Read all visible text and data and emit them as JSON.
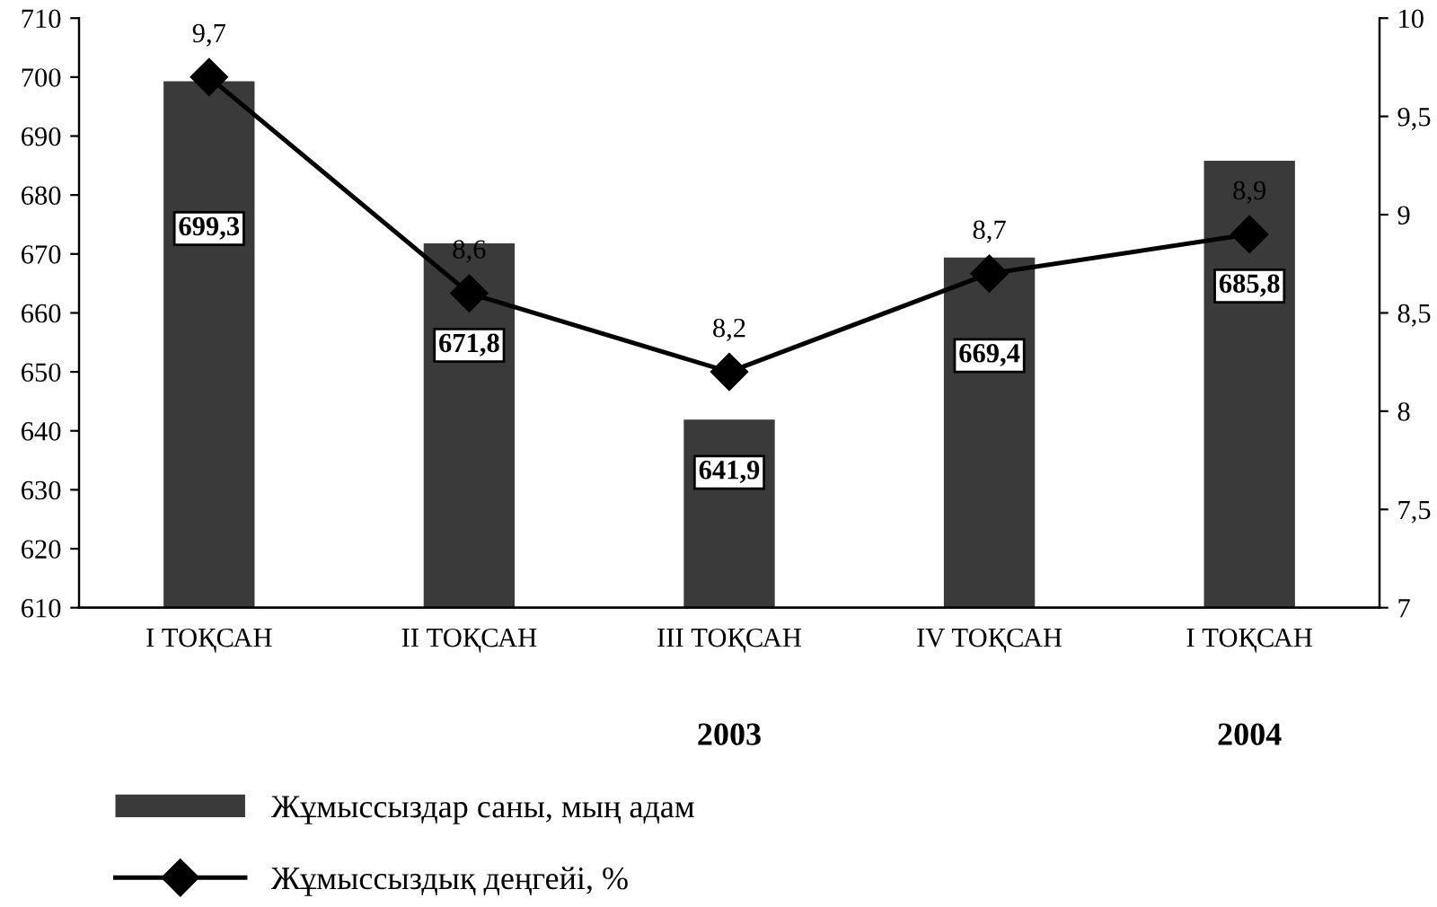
{
  "chart_data": {
    "type": "bar",
    "categories": [
      "I ТОҚСАН",
      "II ТОҚСАН",
      "III ТОҚСАН",
      "IV ТОҚСАН",
      "I ТОҚСАН"
    ],
    "series": [
      {
        "name": "Жұмыссыздар саны, мың адам",
        "color": "#3a3a3a",
        "values": [
          699.3,
          671.8,
          641.9,
          669.4,
          685.8
        ],
        "value_labels": [
          "699,3",
          "671,8",
          "641,9",
          "669,4",
          "685,8"
        ]
      },
      {
        "name": "Жұмыссыздық деңгейі, %",
        "type": "line",
        "axis": "y2",
        "color": "#000000",
        "marker": "diamond",
        "line_style": "solid",
        "values": [
          9.7,
          8.6,
          8.2,
          8.7,
          8.9
        ],
        "value_labels": [
          "9,7",
          "8,6",
          "8,2",
          "8,7",
          "8,9"
        ]
      }
    ],
    "ylim": [
      610,
      710
    ],
    "yticks": [
      610,
      620,
      630,
      640,
      650,
      660,
      670,
      680,
      690,
      700,
      710
    ],
    "y2lim": [
      7,
      10
    ],
    "y2ticks": [
      7,
      {
        "value": 7.5,
        "label": "7,5"
      },
      8,
      {
        "value": 8.5,
        "label": "8,5"
      },
      9,
      {
        "value": 9.5,
        "label": "9,5"
      },
      10
    ],
    "annotations": [
      "2003",
      "2004"
    ],
    "grid": false,
    "legend": "bottom"
  }
}
